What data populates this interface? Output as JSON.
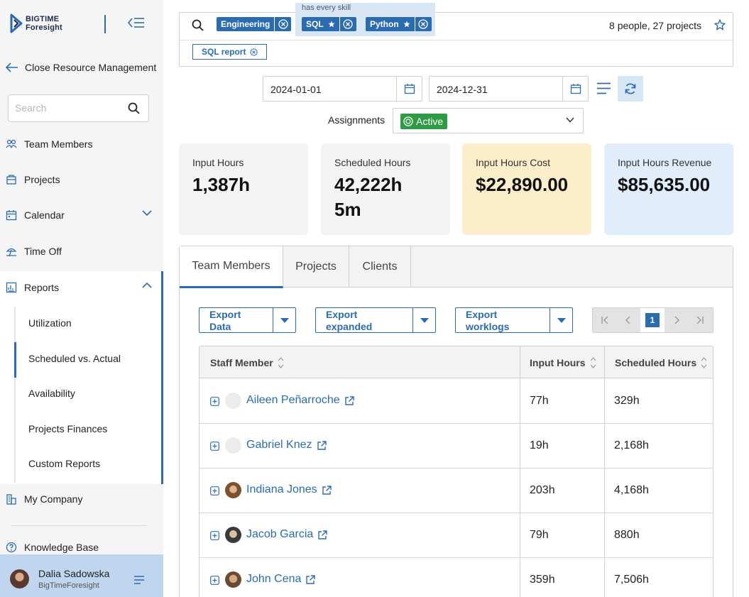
{
  "app": {
    "logo_line1": "BIGTIME",
    "logo_line2": "Foresight"
  },
  "sidebar": {
    "back_label": "Close Resource Management",
    "search_placeholder": "Search",
    "items": [
      {
        "label": "Team Members",
        "icon": "team-icon"
      },
      {
        "label": "Projects",
        "icon": "projects-icon"
      },
      {
        "label": "Calendar",
        "icon": "calendar-icon"
      },
      {
        "label": "Time Off",
        "icon": "time-off-icon"
      },
      {
        "label": "Reports",
        "icon": "reports-icon"
      },
      {
        "label": "My Company",
        "icon": "company-icon"
      },
      {
        "label": "Knowledge Base",
        "icon": "help-icon"
      }
    ],
    "report_subitems": [
      "Utilization",
      "Scheduled vs. Actual",
      "Availability",
      "Projects Finances",
      "Custom Reports"
    ],
    "active_subitem": "Scheduled vs. Actual",
    "user": {
      "name": "Dalia Sadowska",
      "org": "BigTimeForesight"
    }
  },
  "filters": {
    "chip_engineering": "Engineering",
    "skill_group_label": "has every skill",
    "chip_sql": "SQL",
    "chip_python": "Python",
    "chip_report": "SQL report",
    "result_count": "8 people, 27 projects"
  },
  "dates": {
    "start": "2024-01-01",
    "end": "2024-12-31"
  },
  "assignments": {
    "label": "Assignments",
    "value": "Active"
  },
  "cards": [
    {
      "label": "Input Hours",
      "value": "1,387h",
      "color": "#f3f3f3"
    },
    {
      "label": "Scheduled Hours",
      "value": "42,222h 5m",
      "color": "#f3f3f3"
    },
    {
      "label": "Input Hours Cost",
      "value": "$22,890.00",
      "color": "#fdeecb"
    },
    {
      "label": "Input Hours Revenue",
      "value": "$85,635.00",
      "color": "#e1edfa"
    }
  ],
  "tabs": [
    "Team Members",
    "Projects",
    "Clients"
  ],
  "active_tab": "Team Members",
  "exports": [
    {
      "line1": "Export",
      "line2": "Data"
    },
    {
      "line1": "Export",
      "line2": "expanded"
    },
    {
      "line1": "Export",
      "line2": "worklogs"
    }
  ],
  "pagination": {
    "current_page": "1"
  },
  "table": {
    "headers": [
      "Staff Member",
      "Input Hours",
      "Scheduled Hours"
    ],
    "rows": [
      {
        "name": "Aileen Peñarroche",
        "input": "77h",
        "scheduled": "329h"
      },
      {
        "name": "Gabriel Knez",
        "input": "19h",
        "scheduled": "2,168h"
      },
      {
        "name": "Indiana Jones",
        "input": "203h",
        "scheduled": "4,168h"
      },
      {
        "name": "Jacob Garcia",
        "input": "79h",
        "scheduled": "880h"
      },
      {
        "name": "John Cena",
        "input": "359h",
        "scheduled": "7,506h"
      }
    ]
  },
  "colors": {
    "accent": "#2b6cb0",
    "active_green": "#2e9a46"
  }
}
